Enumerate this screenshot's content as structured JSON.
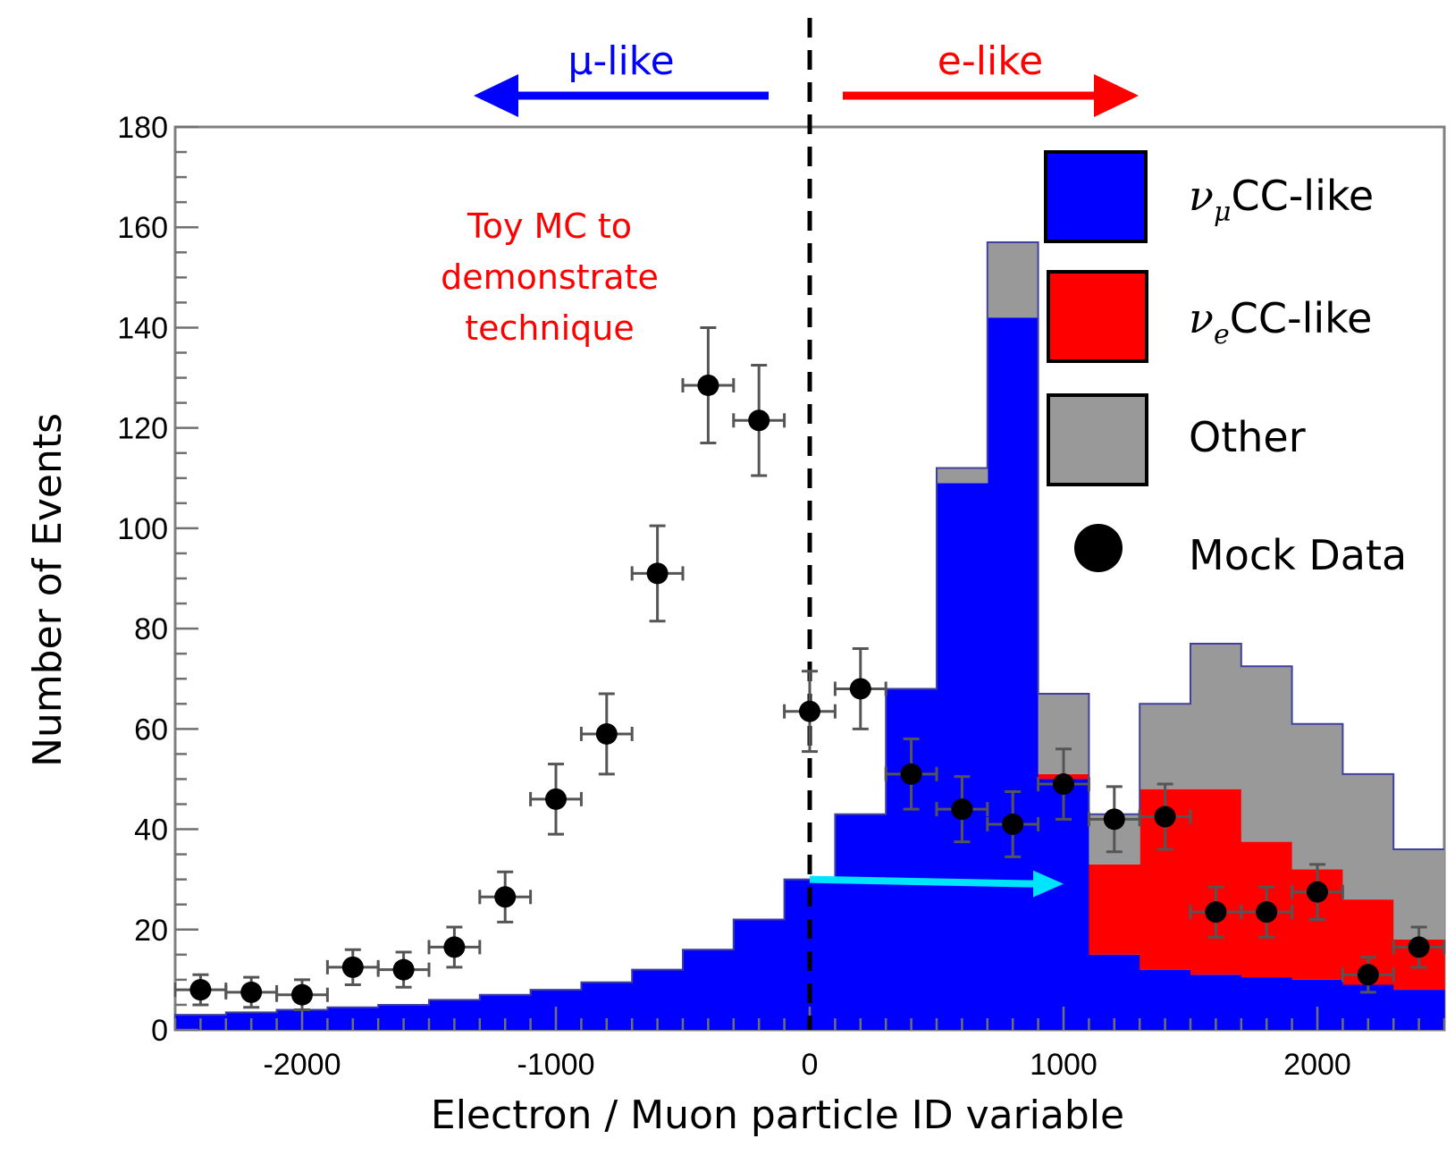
{
  "chart_data": {
    "type": "histogram",
    "xlabel": "Electron / Muon particle ID variable",
    "ylabel": "Number of Events",
    "xlim": [
      -2500,
      2500
    ],
    "ylim": [
      0,
      180
    ],
    "x_ticks": [
      "-2000",
      "-1000",
      "0",
      "1000",
      "2000"
    ],
    "y_ticks": [
      "0",
      "20",
      "40",
      "60",
      "80",
      "100",
      "120",
      "140",
      "160",
      "180"
    ],
    "annotation": [
      "Toy MC to",
      "demonstrate",
      "technique"
    ],
    "regions": {
      "left_label": "μ-like",
      "right_label": "e-like",
      "left_color": "#0000ff",
      "right_color": "#ff0000",
      "divider_x": 0
    },
    "shift_arrow": {
      "from_x": 0,
      "to_x": 1000,
      "y": 30,
      "color": "#00e5ff"
    },
    "bin_edges": [
      -2500,
      -2300,
      -2100,
      -1900,
      -1700,
      -1500,
      -1300,
      -1100,
      -900,
      -700,
      -500,
      -300,
      -100,
      100,
      300,
      500,
      700,
      900,
      1100,
      1300,
      1500,
      1700,
      1900,
      2100,
      2300,
      2500
    ],
    "series": [
      {
        "name": "νμCC-like",
        "color": "#0000ff",
        "values": [
          3,
          3.5,
          4,
          4.5,
          5,
          6,
          7,
          8,
          9.5,
          12,
          16,
          22,
          30,
          43,
          68,
          109,
          142,
          50,
          15,
          12,
          11,
          10.5,
          10,
          9,
          8
        ]
      },
      {
        "name": "νeCC-like",
        "color": "#ff0000",
        "values": [
          0,
          0,
          0,
          0,
          0,
          0,
          0,
          0,
          0,
          0,
          0,
          0,
          0,
          0,
          0,
          0,
          0,
          1,
          18,
          36,
          37,
          27,
          22,
          17,
          10
        ]
      },
      {
        "name": "Other",
        "color": "#999999",
        "values": [
          0,
          0,
          0,
          0,
          0,
          0,
          0,
          0,
          0,
          0,
          0,
          0,
          0,
          0,
          0,
          3,
          15,
          16,
          10,
          17,
          29,
          35,
          29,
          25,
          18
        ]
      }
    ],
    "data_points": {
      "name": "Mock Data",
      "color": "#000000",
      "x": [
        -2400,
        -2200,
        -2000,
        -1800,
        -1600,
        -1400,
        -1200,
        -1000,
        -800,
        -600,
        -400,
        -200,
        0,
        200,
        400,
        600,
        800,
        1000,
        1200,
        1400,
        1600,
        1800,
        2000,
        2200,
        2400
      ],
      "y": [
        8,
        7.5,
        7,
        12.5,
        12,
        16.5,
        26.5,
        46,
        59,
        91,
        128.5,
        121.5,
        63.5,
        68,
        51,
        44,
        41,
        49,
        42,
        42.5,
        23.5,
        23.5,
        27.5,
        11,
        16.5
      ],
      "yerr": [
        3,
        3,
        3,
        3.5,
        3.5,
        4,
        5,
        7,
        8,
        9.5,
        11.5,
        11,
        8,
        8,
        7,
        6.5,
        6.5,
        7,
        6.5,
        6.5,
        5,
        5,
        5.5,
        3.5,
        4
      ],
      "xerr": 100
    },
    "legend": [
      {
        "label_main": "ν",
        "label_sub": "μ",
        "label_rest": "CC-like",
        "color": "#0000ff",
        "kind": "box"
      },
      {
        "label_main": "ν",
        "label_sub": "e",
        "label_rest": "CC-like",
        "color": "#ff0000",
        "kind": "box"
      },
      {
        "label_main": "",
        "label_sub": "",
        "label_rest": "Other",
        "color": "#999999",
        "kind": "box"
      },
      {
        "label_main": "",
        "label_sub": "",
        "label_rest": "Mock Data",
        "color": "#000000",
        "kind": "marker"
      }
    ]
  }
}
